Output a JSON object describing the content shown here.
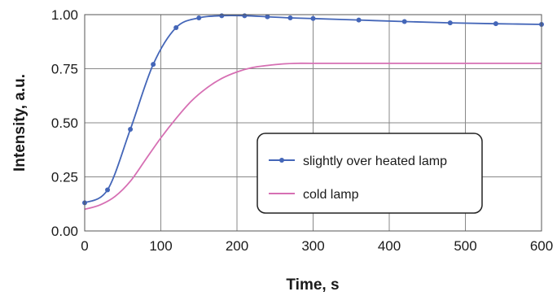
{
  "chart_data": {
    "type": "line",
    "xlabel": "Time, s",
    "ylabel": "Intensity, a.u.",
    "xlim": [
      0,
      600
    ],
    "ylim": [
      0,
      1.0
    ],
    "x_ticks": [
      "0",
      "100",
      "200",
      "300",
      "400",
      "500",
      "600"
    ],
    "y_ticks": [
      "0.00",
      "0.25",
      "0.50",
      "0.75",
      "1.00"
    ],
    "grid": true,
    "legend_position": "inside-center-right",
    "series": [
      {
        "name": "slightly over heated lamp",
        "color": "#4466b8",
        "marker": "circle",
        "x": [
          0,
          30,
          60,
          90,
          120,
          150,
          180,
          210,
          240,
          270,
          300,
          360,
          420,
          480,
          540,
          600
        ],
        "y": [
          0.13,
          0.19,
          0.47,
          0.77,
          0.94,
          0.985,
          0.995,
          0.995,
          0.99,
          0.985,
          0.982,
          0.975,
          0.968,
          0.962,
          0.958,
          0.955
        ]
      },
      {
        "name": "cold lamp",
        "color": "#d66fb3",
        "marker": "none",
        "x": [
          0,
          20,
          40,
          60,
          80,
          100,
          120,
          140,
          160,
          180,
          200,
          220,
          240,
          260,
          280,
          300,
          400,
          500,
          600
        ],
        "y": [
          0.1,
          0.12,
          0.16,
          0.23,
          0.33,
          0.43,
          0.52,
          0.6,
          0.66,
          0.705,
          0.735,
          0.755,
          0.765,
          0.772,
          0.775,
          0.775,
          0.775,
          0.775,
          0.775
        ]
      }
    ]
  }
}
